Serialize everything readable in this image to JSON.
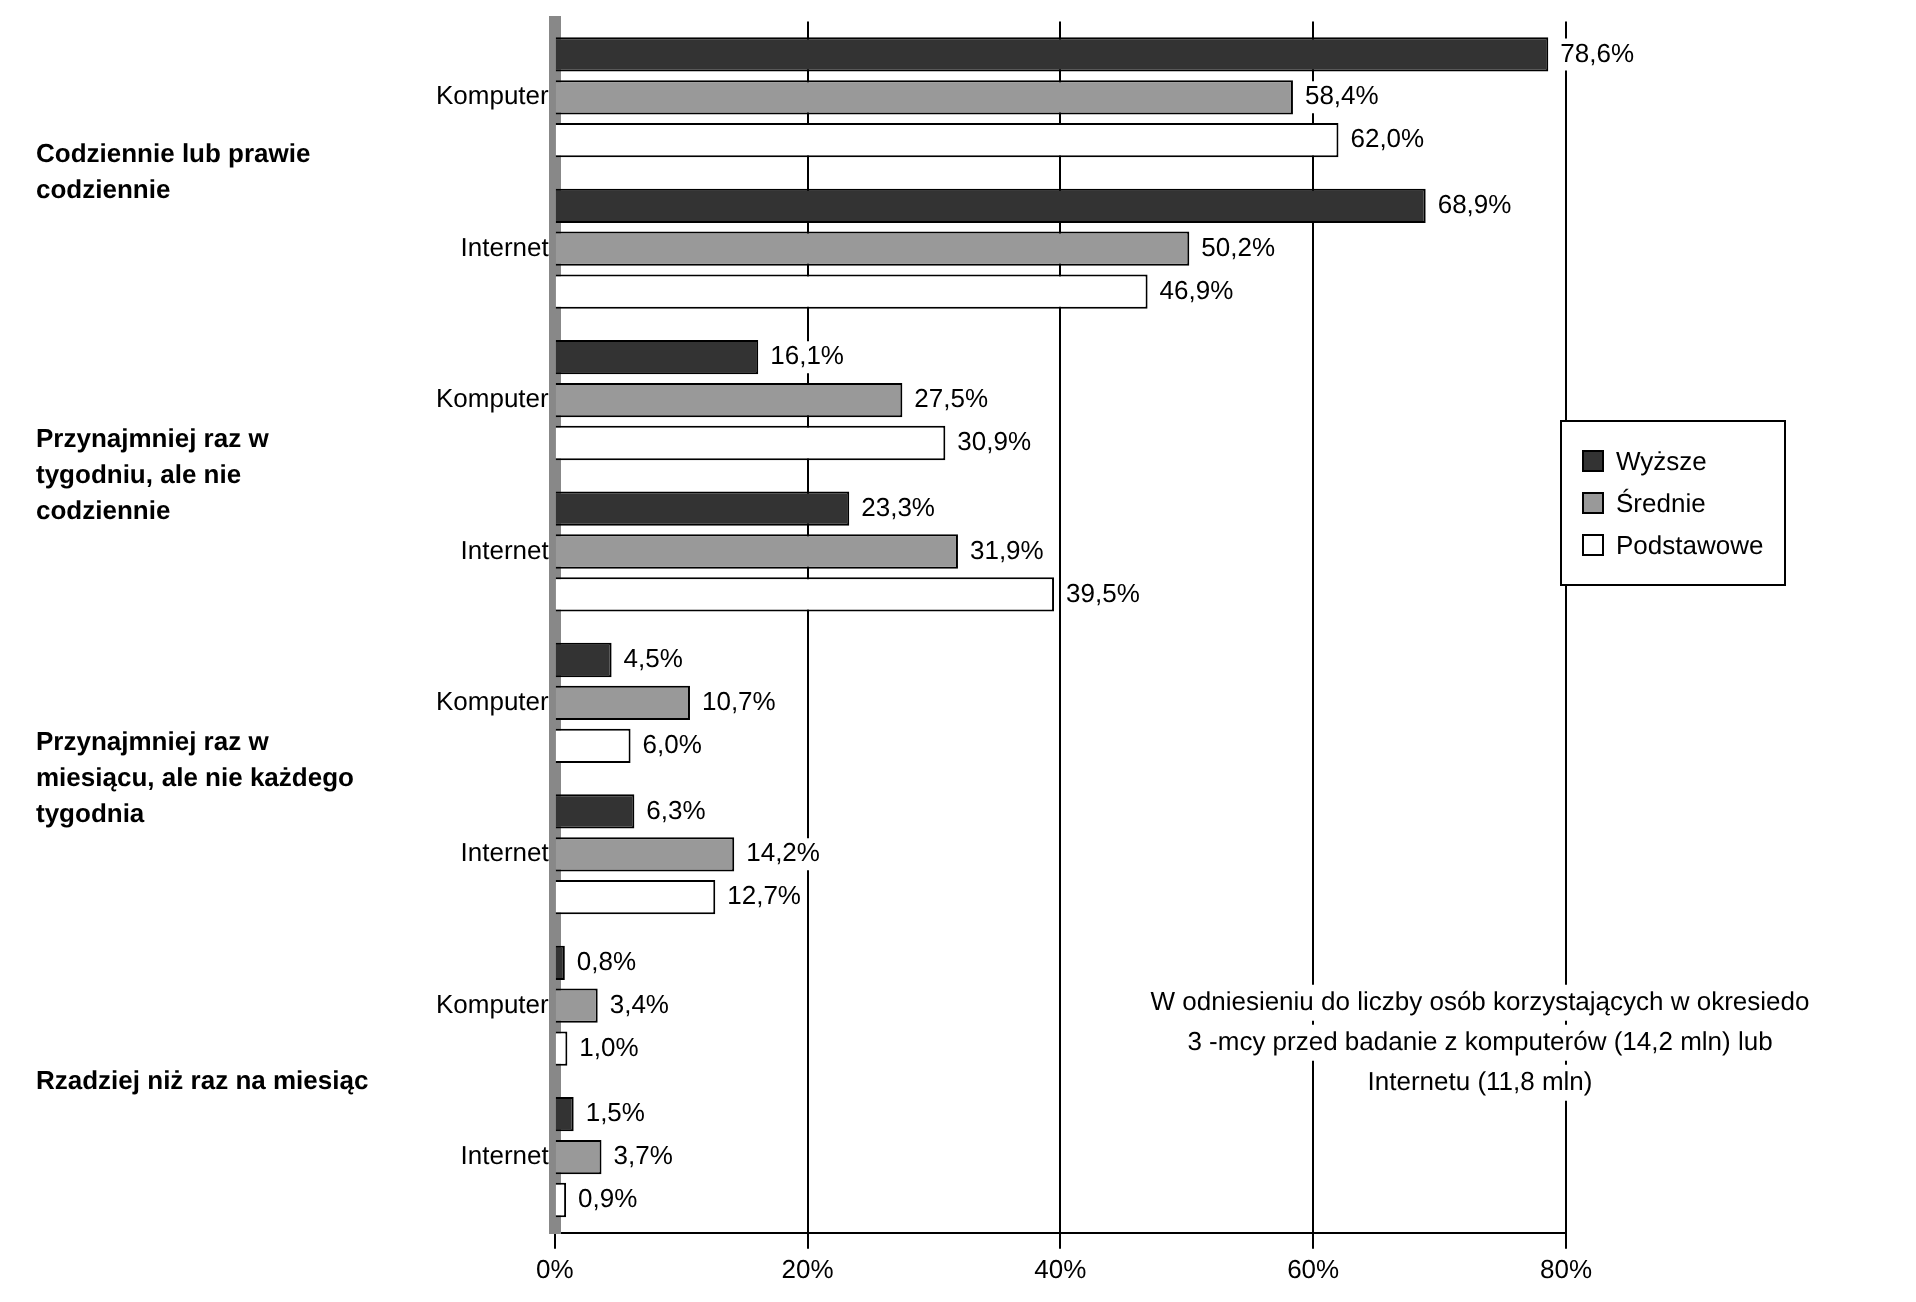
{
  "chart_data": {
    "type": "bar",
    "orientation": "horizontal",
    "categories": [
      "Komputer",
      "Internet",
      "Komputer",
      "Internet",
      "Komputer",
      "Internet",
      "Komputer",
      "Internet"
    ],
    "series": [
      {
        "name": "Wyższe",
        "color": "#333333",
        "values": [
          78.6,
          68.9,
          16.1,
          23.3,
          4.5,
          6.3,
          0.8,
          1.5
        ],
        "value_labels": [
          "78,6%",
          "68,9%",
          "16,1%",
          "23,3%",
          "4,5%",
          "6,3%",
          "0,8%",
          "1,5%"
        ]
      },
      {
        "name": "Średnie",
        "color": "#999999",
        "values": [
          58.4,
          50.2,
          27.5,
          31.9,
          10.7,
          14.2,
          3.4,
          3.7
        ],
        "value_labels": [
          "58,4%",
          "50,2%",
          "27,5%",
          "31,9%",
          "10,7%",
          "14,2%",
          "3,4%",
          "3,7%"
        ]
      },
      {
        "name": "Podstawowe",
        "color": "#ffffff",
        "values": [
          62.0,
          46.9,
          30.9,
          39.5,
          6.0,
          12.7,
          1.0,
          0.9
        ],
        "value_labels": [
          "62,0%",
          "46,9%",
          "30,9%",
          "39,5%",
          "6,0%",
          "12,7%",
          "1,0%",
          "0,9%"
        ]
      }
    ],
    "xlim": [
      0,
      80
    ],
    "xticks": [
      {
        "value": 0,
        "label": "0%"
      },
      {
        "value": 20,
        "label": "20%"
      },
      {
        "value": 40,
        "label": "40%"
      },
      {
        "value": 60,
        "label": "60%"
      },
      {
        "value": 80,
        "label": "80%"
      }
    ],
    "grid": "x",
    "legend": "right",
    "annotations": [
      "Codziennie lub prawie codziennie",
      "Przynajmniej raz w tygodniu, ale nie codziennie",
      "Przynajmniej raz w miesiącu, ale nie każdego tygodnia",
      "Rzadziej niż raz na miesiąc",
      "W odniesieniu do liczby osób korzystających w okresiedo 3 -mcy przed badanie z komputerów (14,2 mln) lub Internetu (11,8 mln)"
    ]
  }
}
